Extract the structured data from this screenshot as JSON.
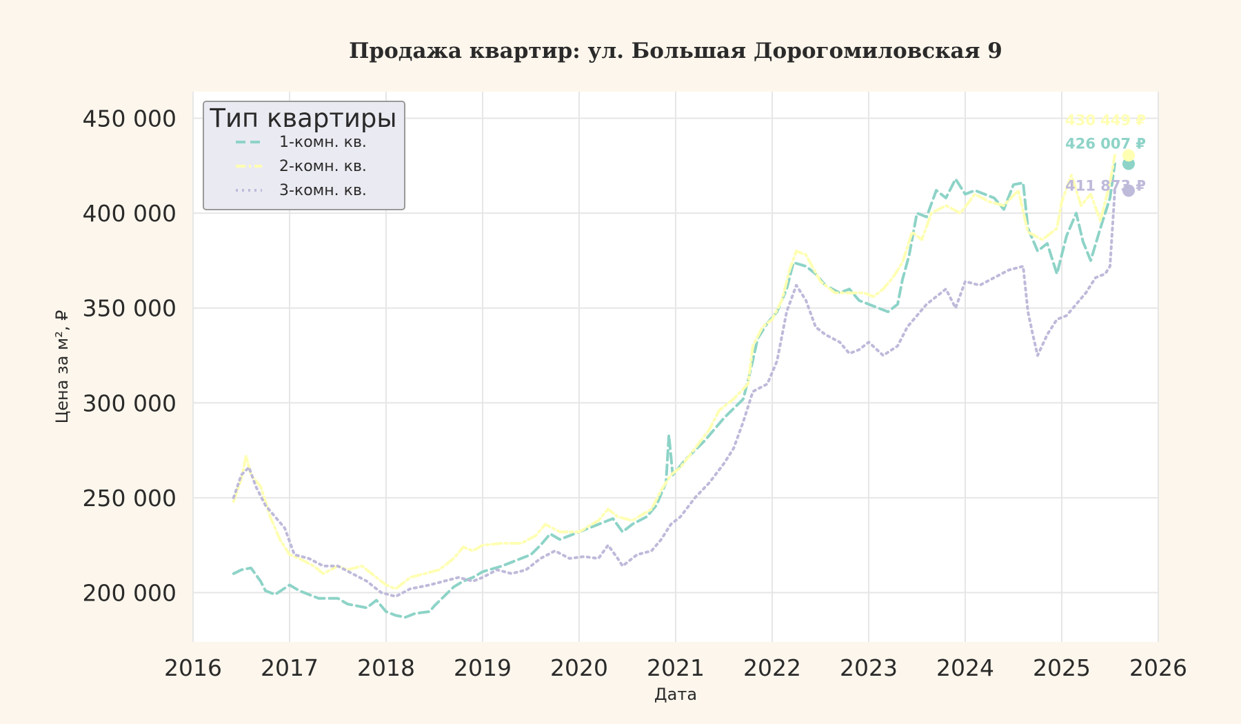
{
  "chart_data": {
    "type": "line",
    "title": "Продажа квартир: ул. Большая Дорогомиловская 9",
    "xlabel": "Дата",
    "ylabel": "Цена за м², ₽",
    "xlim": [
      2016.0,
      2026.0
    ],
    "ylim": [
      174000,
      464000
    ],
    "x_ticks": [
      2016,
      2017,
      2018,
      2019,
      2020,
      2021,
      2022,
      2023,
      2024,
      2025,
      2026
    ],
    "x_tick_labels": [
      "2016",
      "2017",
      "2018",
      "2019",
      "2020",
      "2021",
      "2022",
      "2023",
      "2024",
      "2025",
      "2026"
    ],
    "y_ticks": [
      200000,
      250000,
      300000,
      350000,
      400000,
      450000
    ],
    "y_tick_labels": [
      "200 000",
      "250 000",
      "300 000",
      "350 000",
      "400 000",
      "450 000"
    ],
    "grid": true,
    "legend": {
      "title": "Тип квартиры",
      "position": "top-left"
    },
    "series": [
      {
        "name": "1-комн. кв.",
        "color": "#8dd3c7",
        "dash": "dashed",
        "end_label": "426 007 ₽",
        "end_value": 426007,
        "points": [
          [
            2016.42,
            210000
          ],
          [
            2016.5,
            212000
          ],
          [
            2016.6,
            213000
          ],
          [
            2016.7,
            206000
          ],
          [
            2016.75,
            201000
          ],
          [
            2016.85,
            199000
          ],
          [
            2017.0,
            204000
          ],
          [
            2017.1,
            201000
          ],
          [
            2017.3,
            197000
          ],
          [
            2017.5,
            197000
          ],
          [
            2017.6,
            194000
          ],
          [
            2017.8,
            192000
          ],
          [
            2017.9,
            196000
          ],
          [
            2018.0,
            190000
          ],
          [
            2018.1,
            188000
          ],
          [
            2018.2,
            187000
          ],
          [
            2018.3,
            189000
          ],
          [
            2018.45,
            190000
          ],
          [
            2018.5,
            193000
          ],
          [
            2018.6,
            198000
          ],
          [
            2018.7,
            203000
          ],
          [
            2018.8,
            206000
          ],
          [
            2018.9,
            208000
          ],
          [
            2019.0,
            211000
          ],
          [
            2019.2,
            214000
          ],
          [
            2019.4,
            218000
          ],
          [
            2019.5,
            220000
          ],
          [
            2019.6,
            225000
          ],
          [
            2019.7,
            231000
          ],
          [
            2019.8,
            228000
          ],
          [
            2020.0,
            232000
          ],
          [
            2020.2,
            236000
          ],
          [
            2020.35,
            239000
          ],
          [
            2020.45,
            232000
          ],
          [
            2020.55,
            236000
          ],
          [
            2020.7,
            240000
          ],
          [
            2020.8,
            246000
          ],
          [
            2020.9,
            258000
          ],
          [
            2020.93,
            283000
          ],
          [
            2020.97,
            262000
          ],
          [
            2021.1,
            270000
          ],
          [
            2021.3,
            280000
          ],
          [
            2021.5,
            292000
          ],
          [
            2021.7,
            302000
          ],
          [
            2021.78,
            318000
          ],
          [
            2021.85,
            334000
          ],
          [
            2021.95,
            342000
          ],
          [
            2022.05,
            348000
          ],
          [
            2022.15,
            360000
          ],
          [
            2022.22,
            374000
          ],
          [
            2022.35,
            372000
          ],
          [
            2022.45,
            368000
          ],
          [
            2022.55,
            362000
          ],
          [
            2022.7,
            358000
          ],
          [
            2022.8,
            360000
          ],
          [
            2022.9,
            354000
          ],
          [
            2023.0,
            352000
          ],
          [
            2023.1,
            350000
          ],
          [
            2023.2,
            348000
          ],
          [
            2023.3,
            352000
          ],
          [
            2023.35,
            365000
          ],
          [
            2023.42,
            378000
          ],
          [
            2023.5,
            400000
          ],
          [
            2023.6,
            398000
          ],
          [
            2023.7,
            412000
          ],
          [
            2023.8,
            408000
          ],
          [
            2023.9,
            418000
          ],
          [
            2024.0,
            410000
          ],
          [
            2024.1,
            412000
          ],
          [
            2024.3,
            408000
          ],
          [
            2024.4,
            402000
          ],
          [
            2024.5,
            415000
          ],
          [
            2024.6,
            416000
          ],
          [
            2024.65,
            392000
          ],
          [
            2024.75,
            380000
          ],
          [
            2024.85,
            384000
          ],
          [
            2024.95,
            368000
          ],
          [
            2025.05,
            388000
          ],
          [
            2025.15,
            400000
          ],
          [
            2025.22,
            385000
          ],
          [
            2025.3,
            375000
          ],
          [
            2025.4,
            392000
          ],
          [
            2025.5,
            408000
          ],
          [
            2025.55,
            426007
          ]
        ]
      },
      {
        "name": "2-комн. кв.",
        "color": "#ffffb3",
        "dash": "dashdot",
        "end_label": "430 449 ₽",
        "end_value": 430449,
        "points": [
          [
            2016.42,
            248000
          ],
          [
            2016.5,
            260000
          ],
          [
            2016.55,
            272000
          ],
          [
            2016.6,
            262000
          ],
          [
            2016.7,
            256000
          ],
          [
            2016.8,
            240000
          ],
          [
            2016.9,
            228000
          ],
          [
            2017.0,
            220000
          ],
          [
            2017.1,
            218000
          ],
          [
            2017.25,
            214000
          ],
          [
            2017.35,
            210000
          ],
          [
            2017.5,
            214000
          ],
          [
            2017.6,
            212000
          ],
          [
            2017.75,
            214000
          ],
          [
            2017.9,
            208000
          ],
          [
            2018.0,
            204000
          ],
          [
            2018.1,
            202000
          ],
          [
            2018.25,
            208000
          ],
          [
            2018.4,
            210000
          ],
          [
            2018.55,
            212000
          ],
          [
            2018.7,
            218000
          ],
          [
            2018.8,
            224000
          ],
          [
            2018.9,
            222000
          ],
          [
            2019.0,
            225000
          ],
          [
            2019.2,
            226000
          ],
          [
            2019.4,
            226000
          ],
          [
            2019.55,
            230000
          ],
          [
            2019.65,
            236000
          ],
          [
            2019.8,
            232000
          ],
          [
            2020.0,
            232000
          ],
          [
            2020.2,
            238000
          ],
          [
            2020.3,
            244000
          ],
          [
            2020.4,
            240000
          ],
          [
            2020.55,
            238000
          ],
          [
            2020.75,
            244000
          ],
          [
            2020.85,
            254000
          ],
          [
            2020.95,
            262000
          ],
          [
            2021.05,
            266000
          ],
          [
            2021.2,
            276000
          ],
          [
            2021.35,
            286000
          ],
          [
            2021.45,
            296000
          ],
          [
            2021.6,
            302000
          ],
          [
            2021.75,
            310000
          ],
          [
            2021.8,
            330000
          ],
          [
            2021.9,
            340000
          ],
          [
            2022.0,
            344000
          ],
          [
            2022.1,
            354000
          ],
          [
            2022.18,
            370000
          ],
          [
            2022.25,
            380000
          ],
          [
            2022.35,
            378000
          ],
          [
            2022.5,
            364000
          ],
          [
            2022.65,
            358000
          ],
          [
            2022.8,
            358000
          ],
          [
            2022.95,
            358000
          ],
          [
            2023.05,
            356000
          ],
          [
            2023.15,
            360000
          ],
          [
            2023.25,
            366000
          ],
          [
            2023.35,
            374000
          ],
          [
            2023.45,
            390000
          ],
          [
            2023.55,
            386000
          ],
          [
            2023.65,
            400000
          ],
          [
            2023.8,
            404000
          ],
          [
            2023.95,
            400000
          ],
          [
            2024.1,
            410000
          ],
          [
            2024.25,
            406000
          ],
          [
            2024.4,
            404000
          ],
          [
            2024.55,
            412000
          ],
          [
            2024.65,
            390000
          ],
          [
            2024.8,
            386000
          ],
          [
            2024.95,
            392000
          ],
          [
            2025.0,
            406000
          ],
          [
            2025.1,
            420000
          ],
          [
            2025.2,
            404000
          ],
          [
            2025.3,
            410000
          ],
          [
            2025.4,
            396000
          ],
          [
            2025.5,
            416000
          ],
          [
            2025.55,
            430449
          ]
        ]
      },
      {
        "name": "3-комн. кв.",
        "color": "#bebada",
        "dash": "dotted",
        "end_label": "411 873 ₽",
        "end_value": 411873,
        "points": [
          [
            2016.42,
            250000
          ],
          [
            2016.5,
            262000
          ],
          [
            2016.58,
            266000
          ],
          [
            2016.65,
            256000
          ],
          [
            2016.75,
            246000
          ],
          [
            2016.85,
            240000
          ],
          [
            2016.95,
            234000
          ],
          [
            2017.05,
            220000
          ],
          [
            2017.2,
            218000
          ],
          [
            2017.35,
            214000
          ],
          [
            2017.5,
            214000
          ],
          [
            2017.65,
            210000
          ],
          [
            2017.8,
            206000
          ],
          [
            2017.95,
            200000
          ],
          [
            2018.1,
            198000
          ],
          [
            2018.25,
            202000
          ],
          [
            2018.45,
            204000
          ],
          [
            2018.6,
            206000
          ],
          [
            2018.75,
            208000
          ],
          [
            2018.9,
            206000
          ],
          [
            2019.0,
            208000
          ],
          [
            2019.15,
            212000
          ],
          [
            2019.3,
            210000
          ],
          [
            2019.45,
            212000
          ],
          [
            2019.6,
            218000
          ],
          [
            2019.75,
            222000
          ],
          [
            2019.9,
            218000
          ],
          [
            2020.05,
            219000
          ],
          [
            2020.2,
            218000
          ],
          [
            2020.3,
            225000
          ],
          [
            2020.4,
            218000
          ],
          [
            2020.45,
            214000
          ],
          [
            2020.6,
            220000
          ],
          [
            2020.75,
            222000
          ],
          [
            2020.85,
            228000
          ],
          [
            2020.95,
            236000
          ],
          [
            2021.05,
            240000
          ],
          [
            2021.2,
            250000
          ],
          [
            2021.35,
            258000
          ],
          [
            2021.5,
            268000
          ],
          [
            2021.6,
            276000
          ],
          [
            2021.7,
            290000
          ],
          [
            2021.8,
            306000
          ],
          [
            2021.95,
            310000
          ],
          [
            2022.05,
            322000
          ],
          [
            2022.15,
            348000
          ],
          [
            2022.25,
            362000
          ],
          [
            2022.35,
            354000
          ],
          [
            2022.45,
            340000
          ],
          [
            2022.55,
            336000
          ],
          [
            2022.7,
            332000
          ],
          [
            2022.8,
            326000
          ],
          [
            2022.9,
            328000
          ],
          [
            2023.0,
            332000
          ],
          [
            2023.15,
            325000
          ],
          [
            2023.3,
            330000
          ],
          [
            2023.4,
            340000
          ],
          [
            2023.5,
            346000
          ],
          [
            2023.6,
            352000
          ],
          [
            2023.7,
            356000
          ],
          [
            2023.8,
            360000
          ],
          [
            2023.9,
            350000
          ],
          [
            2024.0,
            364000
          ],
          [
            2024.15,
            362000
          ],
          [
            2024.3,
            366000
          ],
          [
            2024.45,
            370000
          ],
          [
            2024.6,
            372000
          ],
          [
            2024.65,
            348000
          ],
          [
            2024.7,
            336000
          ],
          [
            2024.75,
            325000
          ],
          [
            2024.85,
            336000
          ],
          [
            2024.95,
            344000
          ],
          [
            2025.05,
            346000
          ],
          [
            2025.15,
            352000
          ],
          [
            2025.25,
            358000
          ],
          [
            2025.35,
            366000
          ],
          [
            2025.45,
            368000
          ],
          [
            2025.5,
            372000
          ],
          [
            2025.55,
            411873
          ]
        ]
      }
    ]
  }
}
